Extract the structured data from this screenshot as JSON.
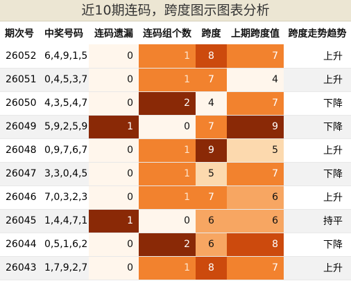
{
  "title": "近10期连码，跨度图示图表分析",
  "headers": {
    "issue": "期次号",
    "nums": "中奖号码",
    "miss": "连码遗漏",
    "groups": "连码组个数",
    "span": "跨度",
    "prev_span": "上期跨度值",
    "trend": "跨度走势趋势"
  },
  "colors": {
    "dark": "#8a2906",
    "mid": "#cc4a0d",
    "orange": "#f2822e",
    "amber": "#f7a662",
    "light": "#fcd9ae",
    "pale": "#fff6ec"
  },
  "rows": [
    {
      "issue": "26052",
      "nums": "6,4,9,1,5",
      "miss": "0",
      "groups": "1",
      "span": "8",
      "prev_span": "7",
      "trend": "上升"
    },
    {
      "issue": "26051",
      "nums": "0,4,5,3,7",
      "miss": "0",
      "groups": "1",
      "span": "7",
      "prev_span": "4",
      "trend": "上升"
    },
    {
      "issue": "26050",
      "nums": "4,3,5,4,7",
      "miss": "0",
      "groups": "2",
      "span": "4",
      "prev_span": "7",
      "trend": "下降"
    },
    {
      "issue": "26049",
      "nums": "5,9,2,5,9",
      "miss": "1",
      "groups": "0",
      "span": "7",
      "prev_span": "9",
      "trend": "下降"
    },
    {
      "issue": "26048",
      "nums": "0,9,7,6,7",
      "miss": "0",
      "groups": "1",
      "span": "9",
      "prev_span": "5",
      "trend": "上升"
    },
    {
      "issue": "26047",
      "nums": "3,3,0,4,5",
      "miss": "0",
      "groups": "1",
      "span": "5",
      "prev_span": "7",
      "trend": "下降"
    },
    {
      "issue": "26046",
      "nums": "7,0,3,2,3",
      "miss": "0",
      "groups": "1",
      "span": "7",
      "prev_span": "6",
      "trend": "上升"
    },
    {
      "issue": "26045",
      "nums": "1,4,4,7,1",
      "miss": "1",
      "groups": "0",
      "span": "6",
      "prev_span": "6",
      "trend": "持平"
    },
    {
      "issue": "26044",
      "nums": "0,5,1,6,2",
      "miss": "0",
      "groups": "2",
      "span": "6",
      "prev_span": "8",
      "trend": "下降"
    },
    {
      "issue": "26043",
      "nums": "1,7,9,2,7",
      "miss": "0",
      "groups": "1",
      "span": "8",
      "prev_span": "7",
      "trend": "上升"
    }
  ]
}
